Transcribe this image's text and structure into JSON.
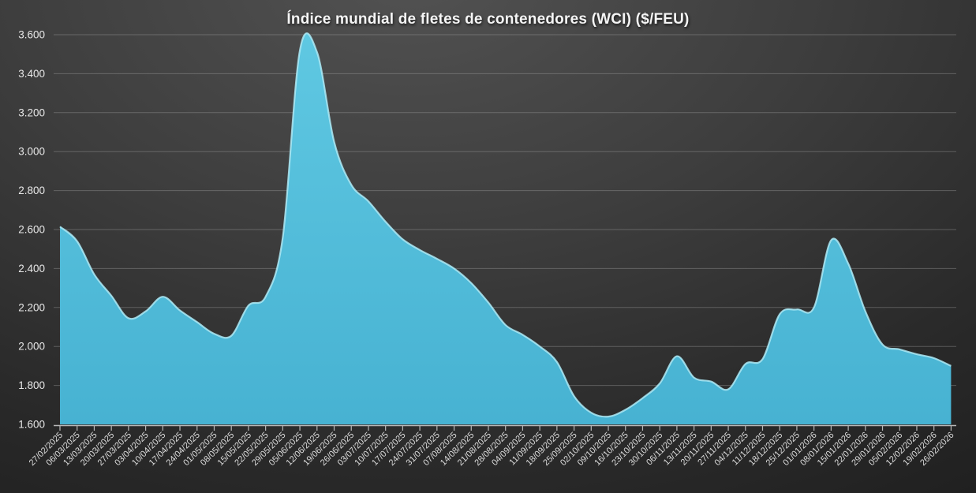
{
  "chart_data": {
    "type": "area",
    "title": "Índice mundial de fletes de contenedores (WCI) ($/FEU)",
    "xlabel": "",
    "ylabel": "",
    "ylim": [
      1600,
      3600
    ],
    "ytick_step": 200,
    "grid": true,
    "legend": false,
    "series_name": "WCI ($/FEU)",
    "categories": [
      "27/02/2025",
      "06/03/2025",
      "13/03/2025",
      "20/03/2025",
      "27/03/2025",
      "03/04/2025",
      "10/04/2025",
      "17/04/2025",
      "24/04/2025",
      "01/05/2025",
      "08/05/2025",
      "15/05/2025",
      "22/05/2025",
      "29/05/2025",
      "05/06/2025",
      "12/06/2025",
      "19/06/2025",
      "26/06/2025",
      "03/07/2025",
      "10/07/2025",
      "17/07/2025",
      "24/07/2025",
      "31/07/2025",
      "07/08/2025",
      "14/08/2025",
      "21/08/2025",
      "28/08/2025",
      "04/09/2025",
      "11/09/2025",
      "18/09/2025",
      "25/09/2025",
      "02/10/2025",
      "09/10/2025",
      "16/10/2025",
      "23/10/2025",
      "30/10/2025",
      "06/11/2025",
      "13/11/2025",
      "20/11/2025",
      "27/11/2025",
      "04/12/2025",
      "11/12/2025",
      "18/12/2025",
      "25/12/2025",
      "01/01/2026",
      "08/01/2026",
      "15/01/2026",
      "22/01/2026",
      "29/01/2026",
      "05/02/2026",
      "12/02/2026",
      "19/02/2026",
      "26/02/2026"
    ],
    "values": [
      2615,
      2540,
      2370,
      2260,
      2145,
      2180,
      2255,
      2185,
      2125,
      2065,
      2055,
      2210,
      2255,
      2560,
      3520,
      3510,
      3050,
      2830,
      2745,
      2640,
      2550,
      2495,
      2450,
      2400,
      2325,
      2225,
      2110,
      2060,
      2000,
      1920,
      1745,
      1660,
      1640,
      1675,
      1735,
      1810,
      1950,
      1840,
      1820,
      1780,
      1910,
      1935,
      2165,
      2190,
      2200,
      2545,
      2425,
      2180,
      2010,
      1985,
      1960,
      1940,
      1900
    ],
    "colors": {
      "area_fill_top": "#5fc8e2",
      "area_fill_bottom": "#47b2d2",
      "area_edge_highlight": "#aeeaf6",
      "background_dark": "#1b1b1b",
      "grid": "#a0a0a0",
      "text": "#e8e8e8"
    }
  }
}
